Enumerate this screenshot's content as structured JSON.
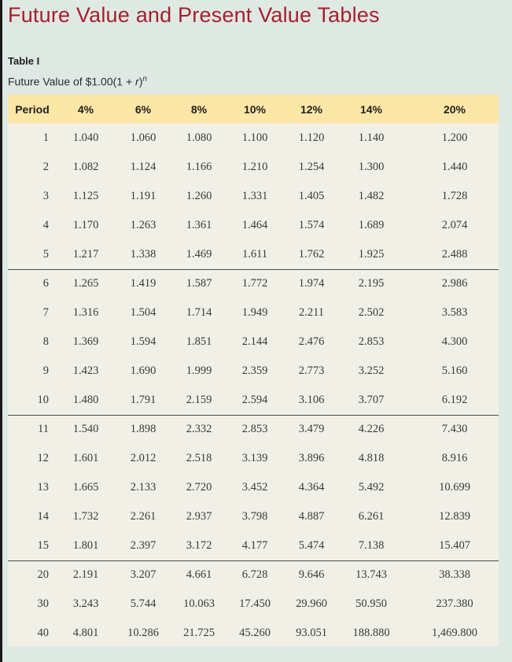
{
  "page": {
    "title": "Future Value and Present Value Tables"
  },
  "table": {
    "label": "Table I",
    "caption_prefix": "Future Value of $1.00(1 + ",
    "caption_var": "r",
    "caption_close": ")",
    "caption_exp": "n",
    "headers": [
      "Period",
      "4%",
      "6%",
      "8%",
      "10%",
      "12%",
      "14%",
      "20%"
    ],
    "rows": [
      [
        "1",
        "1.040",
        "1.060",
        "1.080",
        "1.100",
        "1.120",
        "1.140",
        "1.200"
      ],
      [
        "2",
        "1.082",
        "1.124",
        "1.166",
        "1.210",
        "1.254",
        "1.300",
        "1.440"
      ],
      [
        "3",
        "1.125",
        "1.191",
        "1.260",
        "1.331",
        "1.405",
        "1.482",
        "1.728"
      ],
      [
        "4",
        "1.170",
        "1.263",
        "1.361",
        "1.464",
        "1.574",
        "1.689",
        "2.074"
      ],
      [
        "5",
        "1.217",
        "1.338",
        "1.469",
        "1.611",
        "1.762",
        "1.925",
        "2.488"
      ],
      [
        "6",
        "1.265",
        "1.419",
        "1.587",
        "1.772",
        "1.974",
        "2.195",
        "2.986"
      ],
      [
        "7",
        "1.316",
        "1.504",
        "1.714",
        "1.949",
        "2.211",
        "2.502",
        "3.583"
      ],
      [
        "8",
        "1.369",
        "1.594",
        "1.851",
        "2.144",
        "2.476",
        "2.853",
        "4.300"
      ],
      [
        "9",
        "1.423",
        "1.690",
        "1.999",
        "2.359",
        "2.773",
        "3.252",
        "5.160"
      ],
      [
        "10",
        "1.480",
        "1.791",
        "2.159",
        "2.594",
        "3.106",
        "3.707",
        "6.192"
      ],
      [
        "11",
        "1.540",
        "1.898",
        "2.332",
        "2.853",
        "3.479",
        "4.226",
        "7.430"
      ],
      [
        "12",
        "1.601",
        "2.012",
        "2.518",
        "3.139",
        "3.896",
        "4.818",
        "8.916"
      ],
      [
        "13",
        "1.665",
        "2.133",
        "2.720",
        "3.452",
        "4.364",
        "5.492",
        "10.699"
      ],
      [
        "14",
        "1.732",
        "2.261",
        "2.937",
        "3.798",
        "4.887",
        "6.261",
        "12.839"
      ],
      [
        "15",
        "1.801",
        "2.397",
        "3.172",
        "4.177",
        "5.474",
        "7.138",
        "15.407"
      ],
      [
        "20",
        "2.191",
        "3.207",
        "4.661",
        "6.728",
        "9.646",
        "13.743",
        "38.338"
      ],
      [
        "30",
        "3.243",
        "5.744",
        "10.063",
        "17.450",
        "29.960",
        "50.950",
        "237.380"
      ],
      [
        "40",
        "4.801",
        "10.286",
        "21.725",
        "45.260",
        "93.051",
        "188.880",
        "1,469.800"
      ]
    ]
  }
}
